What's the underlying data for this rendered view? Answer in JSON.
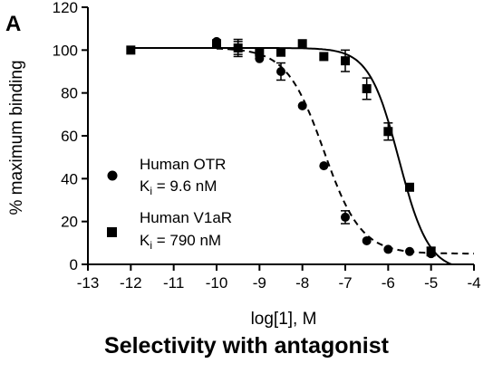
{
  "panel_label": "A",
  "caption": "Selectivity with antagonist",
  "chart_data": {
    "type": "scatter",
    "title": "",
    "xlabel": "log[1], M",
    "ylabel": "% maximum binding",
    "xlim": [
      -13,
      -4
    ],
    "ylim": [
      0,
      120
    ],
    "x_ticks": [
      "-13",
      "-12",
      "-11",
      "-10",
      "-9",
      "-8",
      "-7",
      "-6",
      "-5",
      "-4"
    ],
    "y_ticks": [
      "0",
      "20",
      "40",
      "60",
      "80",
      "100",
      "120"
    ],
    "grid": false,
    "legend_position": "bottom-left",
    "series": [
      {
        "name": "Human OTR",
        "ki_label": "K",
        "ki_sub": "i",
        "ki_value": " = 9.6 nM",
        "marker": "circle",
        "fit_line": "dashed",
        "fit": {
          "top": 101,
          "bottom": 5,
          "log_ic50": -7.5,
          "hill": 1.0
        },
        "points": [
          {
            "x": -10,
            "y": 104,
            "err": 0
          },
          {
            "x": -9.5,
            "y": 101,
            "err": 3
          },
          {
            "x": -9,
            "y": 96,
            "err": 0
          },
          {
            "x": -8.5,
            "y": 90,
            "err": 4
          },
          {
            "x": -8,
            "y": 74,
            "err": 0
          },
          {
            "x": -7.5,
            "y": 46,
            "err": 0
          },
          {
            "x": -7,
            "y": 22,
            "err": 3
          },
          {
            "x": -6.5,
            "y": 11,
            "err": 0
          },
          {
            "x": -6,
            "y": 7,
            "err": 0
          },
          {
            "x": -5.5,
            "y": 6,
            "err": 0
          },
          {
            "x": -5,
            "y": 5,
            "err": 0
          }
        ]
      },
      {
        "name": "Human V1aR",
        "ki_label": "K",
        "ki_sub": "i",
        "ki_value": " = 790 nM",
        "marker": "square",
        "fit_line": "solid",
        "fit": {
          "top": 101,
          "bottom": -3,
          "log_ic50": -5.75,
          "hill": 1.25
        },
        "points": [
          {
            "x": -12,
            "y": 100,
            "err": 0
          },
          {
            "x": -10,
            "y": 103,
            "err": 0
          },
          {
            "x": -9.5,
            "y": 101,
            "err": 4
          },
          {
            "x": -9,
            "y": 99,
            "err": 0
          },
          {
            "x": -8.5,
            "y": 99,
            "err": 0
          },
          {
            "x": -8,
            "y": 103,
            "err": 0
          },
          {
            "x": -7.5,
            "y": 97,
            "err": 0
          },
          {
            "x": -7,
            "y": 95,
            "err": 5
          },
          {
            "x": -6.5,
            "y": 82,
            "err": 5
          },
          {
            "x": -6,
            "y": 62,
            "err": 4
          },
          {
            "x": -5.5,
            "y": 36,
            "err": 0
          },
          {
            "x": -5,
            "y": 6,
            "err": 2
          }
        ]
      }
    ]
  }
}
